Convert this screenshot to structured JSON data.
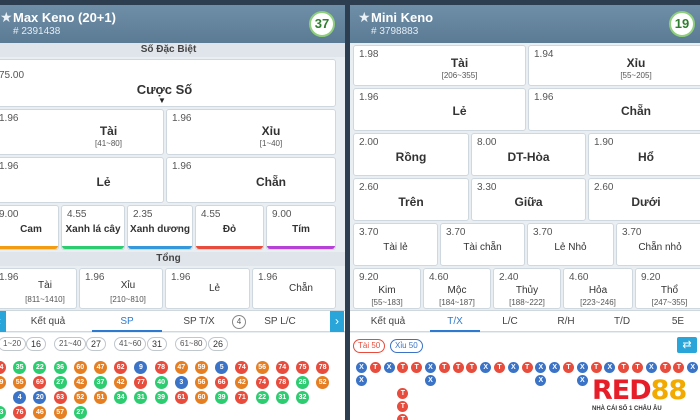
{
  "max_keno": {
    "title": "Max Keno (20+1)",
    "draw_id": "# 2391438",
    "timer": "37",
    "special_header": "Số Đặc Biệt",
    "bet_number": {
      "odds": "75.00",
      "label": "Cược Số"
    },
    "row1": [
      {
        "odds": "1.96",
        "name": "Tài",
        "range": "[41~80]"
      },
      {
        "odds": "1.96",
        "name": "Xỉu",
        "range": "[1~40]"
      }
    ],
    "row2": [
      {
        "odds": "1.96",
        "name": "Lẻ"
      },
      {
        "odds": "1.96",
        "name": "Chẵn"
      }
    ],
    "colors": [
      {
        "odds": "9.00",
        "name": "Cam",
        "color": "#f39c12"
      },
      {
        "odds": "4.55",
        "name": "Xanh lá cây",
        "color": "#2ecc71"
      },
      {
        "odds": "2.35",
        "name": "Xanh dương",
        "color": "#3498db"
      },
      {
        "odds": "4.55",
        "name": "Đỏ",
        "color": "#e74c3c"
      },
      {
        "odds": "9.00",
        "name": "Tím",
        "color": "#b541d6"
      }
    ],
    "total_header": "Tổng",
    "total": [
      {
        "odds": "1.96",
        "name": "Tài",
        "range": "[811~1410]"
      },
      {
        "odds": "1.96",
        "name": "Xỉu",
        "range": "[210~810]"
      },
      {
        "odds": "1.96",
        "name": "Lẻ"
      },
      {
        "odds": "1.96",
        "name": "Chẵn"
      }
    ],
    "tabs": [
      "Kết quả",
      "SP",
      "SP T/X",
      "SP L/C"
    ],
    "tab_badge": "4",
    "filters": [
      {
        "label": "1~20",
        "count": "16"
      },
      {
        "label": "21~40",
        "count": "27"
      },
      {
        "label": "41~60",
        "count": "31"
      },
      {
        "label": "61~80",
        "count": "26"
      }
    ],
    "balls": [
      [
        "74",
        "35",
        "22",
        "36",
        "60",
        "47",
        "62",
        "9",
        "78",
        "47",
        "59",
        "5",
        "74",
        "56",
        "74",
        "75",
        "78"
      ],
      [
        "49",
        "55",
        "69",
        "27",
        "42",
        "37",
        "42",
        "77",
        "40",
        "3",
        "56",
        "66",
        "42",
        "74",
        "78",
        "26",
        "52"
      ],
      [
        "",
        "4",
        "20",
        "63",
        "52",
        "51",
        "34",
        "31",
        "39",
        "61",
        "60",
        "39",
        "71",
        "22",
        "31",
        "32",
        ""
      ],
      [
        "33",
        "76",
        "46",
        "57",
        "27",
        "",
        "",
        "",
        "",
        "",
        "",
        "",
        "",
        "",
        "",
        "",
        ""
      ]
    ]
  },
  "mini_keno": {
    "title": "Mini Keno",
    "draw_id": "# 3798883",
    "timer": "19",
    "row1": [
      {
        "odds": "1.98",
        "name": "Tài",
        "range": "[206~355]"
      },
      {
        "odds": "1.94",
        "name": "Xỉu",
        "range": "[55~205]"
      }
    ],
    "row2": [
      {
        "odds": "1.96",
        "name": "Lẻ"
      },
      {
        "odds": "1.96",
        "name": "Chẵn"
      }
    ],
    "row3": [
      {
        "odds": "2.00",
        "name": "Rồng"
      },
      {
        "odds": "8.00",
        "name": "DT-Hòa"
      },
      {
        "odds": "1.90",
        "name": "Hổ"
      }
    ],
    "row4": [
      {
        "odds": "2.60",
        "name": "Trên"
      },
      {
        "odds": "3.30",
        "name": "Giữa"
      },
      {
        "odds": "2.60",
        "name": "Dưới"
      }
    ],
    "row5": [
      {
        "odds": "3.70",
        "name": "Tài lẻ"
      },
      {
        "odds": "3.70",
        "name": "Tài chẵn"
      },
      {
        "odds": "3.70",
        "name": "Lẻ Nhỏ"
      },
      {
        "odds": "3.70",
        "name": "Chẵn nhỏ"
      }
    ],
    "row6": [
      {
        "odds": "9.20",
        "name": "Kim",
        "range": "[55~183]"
      },
      {
        "odds": "4.60",
        "name": "Mộc",
        "range": "[184~187]"
      },
      {
        "odds": "2.40",
        "name": "Thủy",
        "range": "[188~222]"
      },
      {
        "odds": "4.60",
        "name": "Hỏa",
        "range": "[223~246]"
      },
      {
        "odds": "9.20",
        "name": "Thổ",
        "range": "[247~355]"
      }
    ],
    "tabs": [
      "Kết quả",
      "T/X",
      "L/C",
      "R/H",
      "T/D",
      "5E"
    ],
    "legend": [
      {
        "label": "Tài 50",
        "color": "#e74c3c"
      },
      {
        "label": "Xỉu 50",
        "color": "#3b73c7"
      }
    ],
    "tx_letters": {
      "tai": "T",
      "xiu": "X"
    }
  },
  "brand": {
    "red_part": "RED",
    "yellow_part": "88",
    "slogan": "NHÀ CÁI SỐ 1 CHÂU ÂU"
  },
  "ball_colors": {
    "range1": "#3b73c7",
    "range2": "#2ecc71",
    "range3": "#e67e22",
    "range4": "#e74c3c",
    "special": "#b541d6"
  }
}
